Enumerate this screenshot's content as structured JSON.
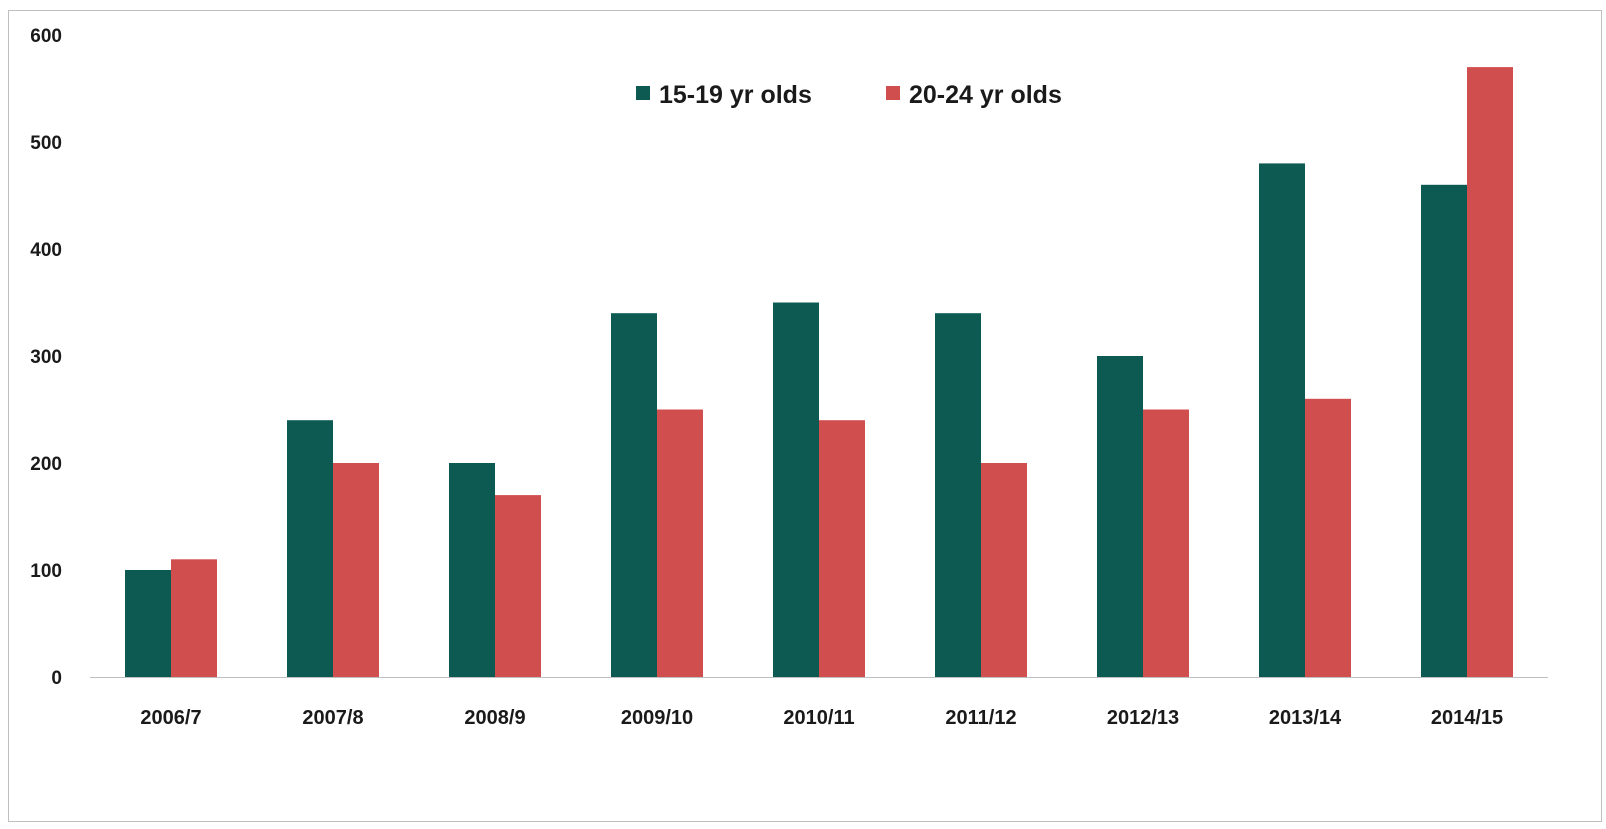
{
  "chart_data": {
    "type": "bar",
    "title": "",
    "xlabel": "",
    "ylabel": "",
    "categories": [
      "2006/7",
      "2007/8",
      "2008/9",
      "2009/10",
      "2010/11",
      "2011/12",
      "2012/13",
      "2013/14",
      "2014/15"
    ],
    "series": [
      {
        "name": "15-19 yr olds",
        "color": "#0d5a52",
        "values": [
          100,
          240,
          200,
          340,
          350,
          340,
          300,
          480,
          460
        ]
      },
      {
        "name": "20-24 yr olds",
        "color": "#d14e4e",
        "values": [
          110,
          200,
          170,
          250,
          240,
          200,
          250,
          260,
          570
        ]
      }
    ],
    "ylim": [
      0,
      600
    ],
    "yticks": [
      0,
      100,
      200,
      300,
      400,
      500,
      600
    ],
    "grid": false,
    "legend_position": "top-center"
  }
}
